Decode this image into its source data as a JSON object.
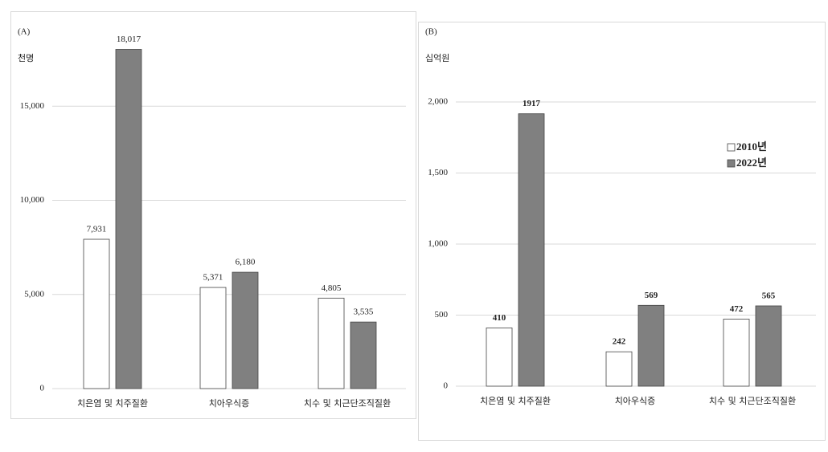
{
  "chart_data": [
    {
      "type": "bar",
      "title": "(A)",
      "unit": "천명",
      "categories": [
        "치은염 및 치주질환",
        "치아우식증",
        "치수 및 치근단조직질환"
      ],
      "series": [
        {
          "color": "#ffffff",
          "values": [
            7931,
            5371,
            4805
          ],
          "value_labels": [
            "7,931",
            "5,371",
            "4,805"
          ]
        },
        {
          "color": "#808080",
          "values": [
            18017,
            6180,
            3535
          ],
          "value_labels": [
            "18,017",
            "6,180",
            "3,535"
          ]
        }
      ],
      "ylim": [
        0,
        20000
      ],
      "yticks": [
        0,
        {
          "value": 5000,
          "label": "5,000"
        },
        {
          "value": 10000,
          "label": "10,000"
        },
        {
          "value": 15000,
          "label": "15,000"
        }
      ],
      "grid": true
    },
    {
      "type": "bar",
      "title": "(B)",
      "unit": "십억원",
      "categories": [
        "치은염 및 치주질환",
        "치아우식증",
        "치수 및 치근단조직질환"
      ],
      "series": [
        {
          "name": "2010년",
          "color": "#ffffff",
          "values": [
            410,
            242,
            472
          ]
        },
        {
          "name": "2022년",
          "color": "#808080",
          "values": [
            1917,
            569,
            565
          ]
        }
      ],
      "ylim": [
        0,
        2000
      ],
      "yticks": [
        0,
        500,
        {
          "value": 1000,
          "label": "1,000"
        },
        {
          "value": 1500,
          "label": "1,500"
        },
        {
          "value": 2000,
          "label": "2,000"
        }
      ],
      "grid": true,
      "legend": "right"
    }
  ]
}
